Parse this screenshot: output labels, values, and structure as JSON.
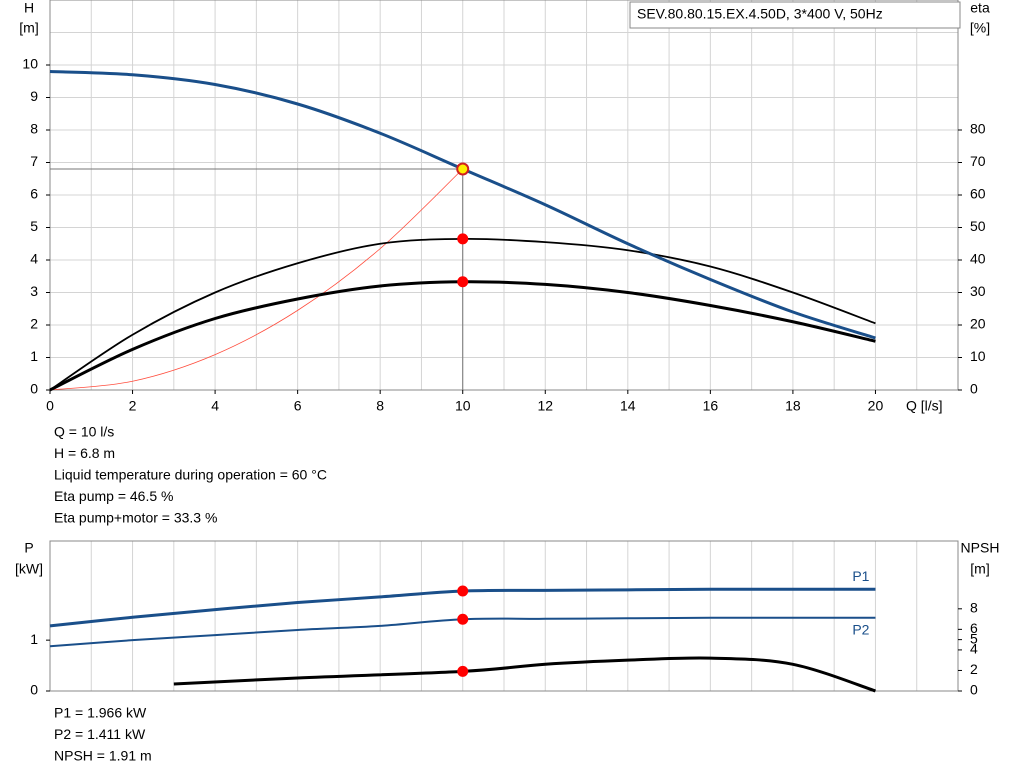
{
  "chart_data": [
    {
      "type": "line",
      "annotation": "SEV.80.80.15.EX.4.50D, 3*400 V, 50Hz",
      "ylabel": "H",
      "yunit": "[m]",
      "y2label": "eta",
      "y2unit": "[%]",
      "xlabel": "Q [l/s]",
      "x": [
        0,
        2,
        4,
        6,
        8,
        10,
        12,
        14,
        16,
        18,
        20
      ],
      "xlim": [
        0,
        22
      ],
      "xticks": [
        0,
        2,
        4,
        6,
        8,
        10,
        12,
        14,
        16,
        18,
        20
      ],
      "x_grid": [
        1,
        2,
        3,
        4,
        5,
        6,
        7,
        8,
        9,
        10,
        11,
        12,
        13,
        14,
        15,
        16,
        17,
        18,
        19,
        20,
        21
      ],
      "ylim": [
        0,
        12
      ],
      "yticks": [
        0,
        1,
        2,
        3,
        4,
        5,
        6,
        7,
        8,
        9,
        10
      ],
      "y_grid": [
        1,
        2,
        3,
        4,
        5,
        6,
        7,
        8,
        9,
        10,
        11
      ],
      "y2lim": [
        0,
        120
      ],
      "y2ticks": [
        0,
        10,
        20,
        30,
        40,
        50,
        60,
        70,
        80
      ],
      "series": [
        {
          "color": "#ff4c3c",
          "width": 0.8,
          "values": [
            0,
            0.27,
            1.09,
            2.45,
            4.35,
            6.8
          ],
          "x": [
            0,
            2,
            4,
            6,
            8,
            10
          ]
        },
        {
          "color": "#000000",
          "width": 1.8,
          "axis": "y2",
          "values": [
            0,
            17,
            30,
            39,
            45,
            46.5,
            45.5,
            43,
            38,
            30,
            20.5
          ]
        },
        {
          "color": "#000000",
          "width": 3,
          "axis": "y2",
          "values": [
            0,
            12.5,
            22,
            28,
            32,
            33.3,
            32.5,
            30,
            26,
            21,
            15
          ]
        },
        {
          "color": "#1a4f8a",
          "width": 3,
          "values": [
            9.8,
            9.7,
            9.4,
            8.8,
            7.9,
            6.8,
            5.7,
            4.5,
            3.4,
            2.4,
            1.6
          ]
        }
      ],
      "operating_point": {
        "x": 10,
        "y": 6.8
      },
      "markers": [
        {
          "x": 10,
          "y": 46.5,
          "axis": "y2",
          "color": "#ff0000"
        },
        {
          "x": 10,
          "y": 33.3,
          "axis": "y2",
          "color": "#ff0000"
        },
        {
          "x": 10,
          "y": 6.8,
          "color": "#ffee00"
        }
      ],
      "info": [
        "Q = 10 l/s",
        "H = 6.8 m",
        "Liquid temperature during operation = 60 °C",
        "Eta pump = 46.5 %",
        "Eta pump+motor = 33.3 %"
      ]
    },
    {
      "type": "line",
      "ylabel": "P",
      "yunit": "[kW]",
      "y2label": "NPSH",
      "y2unit": "[m]",
      "x": [
        0,
        2,
        4,
        6,
        8,
        10,
        12,
        14,
        16,
        18,
        20
      ],
      "xlim": [
        0,
        22
      ],
      "x_grid": [
        1,
        2,
        3,
        4,
        5,
        6,
        7,
        8,
        9,
        10,
        11,
        12,
        13,
        14,
        15,
        16,
        17,
        18,
        19,
        20,
        21
      ],
      "ylim": [
        0,
        2.95
      ],
      "yticks": [
        0,
        1
      ],
      "y2lim": [
        0,
        14.6
      ],
      "y2ticks": [
        0,
        2,
        4,
        5,
        6,
        8
      ],
      "series": [
        {
          "name": "P1",
          "color": "#1a4f8a",
          "width": 3,
          "values": [
            1.28,
            1.45,
            1.6,
            1.74,
            1.85,
            1.966,
            1.98,
            1.99,
            2.0,
            2.0,
            2.0
          ]
        },
        {
          "name": "P2",
          "color": "#1a4f8a",
          "width": 2,
          "values": [
            0.88,
            1.0,
            1.1,
            1.2,
            1.28,
            1.411,
            1.42,
            1.43,
            1.44,
            1.44,
            1.44
          ]
        },
        {
          "color": "#000000",
          "width": 3,
          "axis": "y2",
          "x": [
            3,
            6,
            10,
            12,
            14,
            16,
            18,
            20
          ],
          "values": [
            0.68,
            1.27,
            1.91,
            2.6,
            3.0,
            3.2,
            2.6,
            0
          ]
        }
      ],
      "markers": [
        {
          "x": 10,
          "y": 1.966,
          "color": "#ff0000"
        },
        {
          "x": 10,
          "y": 1.411,
          "color": "#ff0000"
        },
        {
          "x": 10,
          "y": 1.91,
          "axis": "y2",
          "color": "#ff0000"
        }
      ],
      "info": [
        "P1 = 1.966 kW",
        "P2 = 1.411 kW",
        "NPSH = 1.91 m"
      ]
    }
  ]
}
